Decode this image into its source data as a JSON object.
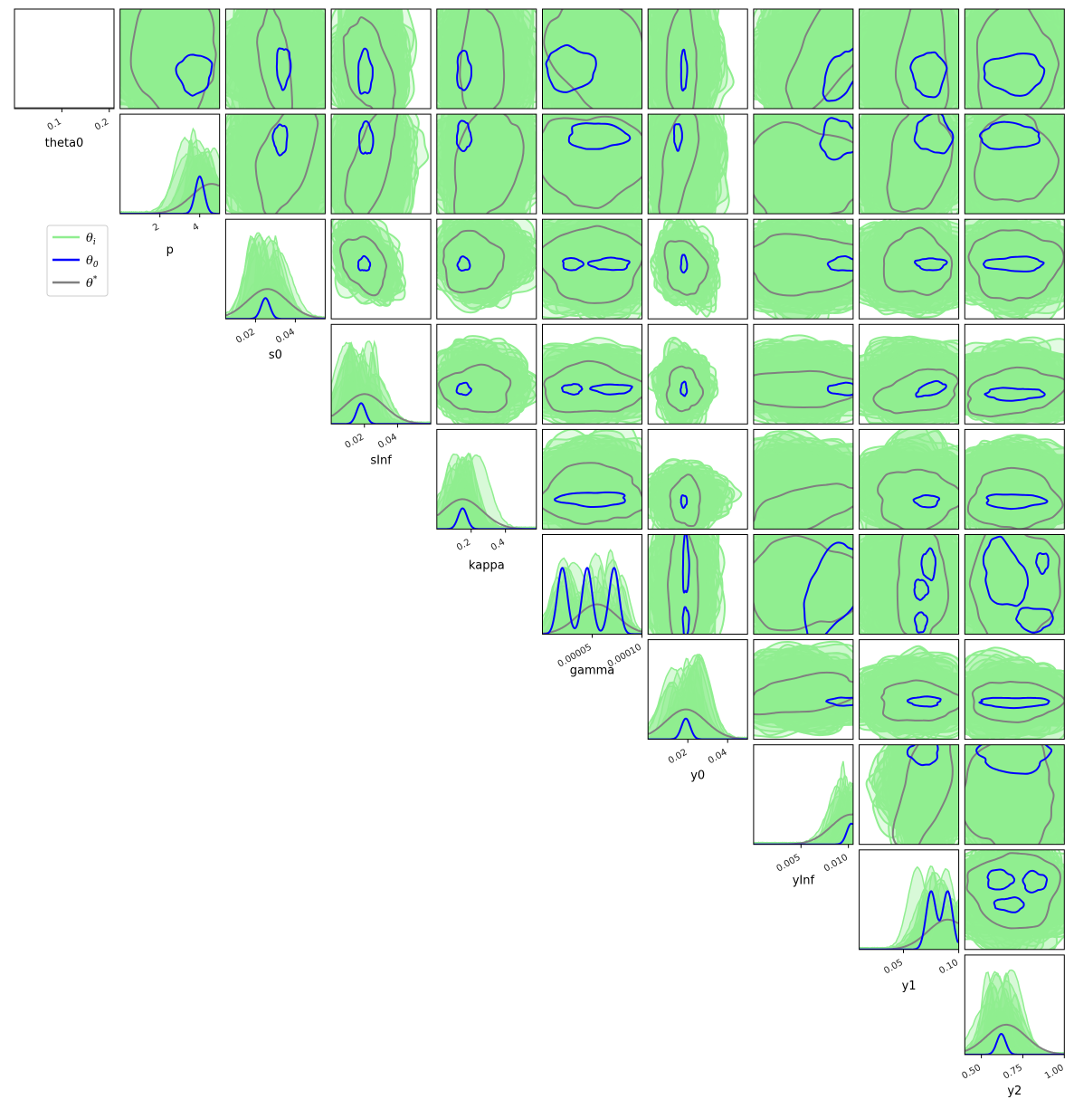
{
  "chart_data": {
    "type": "corner",
    "parameters": [
      "theta0",
      "p",
      "s0",
      "sInf",
      "kappa",
      "gamma",
      "y0",
      "yInf",
      "y1",
      "y2"
    ],
    "ticks": {
      "theta0": {
        "range": [
          0.0,
          0.21
        ],
        "ticks": [
          0.1,
          0.2
        ],
        "labels": [
          "0.1",
          "0.2"
        ]
      },
      "p": {
        "range": [
          0.0,
          5.0
        ],
        "ticks": [
          2,
          4
        ],
        "labels": [
          "2",
          "4"
        ]
      },
      "s0": {
        "range": [
          0.005,
          0.055
        ],
        "ticks": [
          0.02,
          0.04
        ],
        "labels": [
          "0.02",
          "0.04"
        ]
      },
      "sInf": {
        "range": [
          0.0,
          0.06
        ],
        "ticks": [
          0.02,
          0.04
        ],
        "labels": [
          "0.02",
          "0.04"
        ]
      },
      "kappa": {
        "range": [
          0.0,
          0.58
        ],
        "ticks": [
          0.2,
          0.4
        ],
        "labels": [
          "0.2",
          "0.4"
        ]
      },
      "gamma": {
        "range": [
          0.0,
          0.0001
        ],
        "ticks": [
          5e-05,
          0.0001
        ],
        "labels": [
          "0.00005",
          "0.00010"
        ]
      },
      "y0": {
        "range": [
          0.0,
          0.05
        ],
        "ticks": [
          0.02,
          0.04
        ],
        "labels": [
          "0.02",
          "0.04"
        ]
      },
      "yInf": {
        "range": [
          0.0,
          0.0105
        ],
        "ticks": [
          0.005,
          0.01
        ],
        "labels": [
          "0.005",
          "0.010"
        ]
      },
      "y1": {
        "range": [
          0.01,
          0.1
        ],
        "ticks": [
          0.05,
          0.1
        ],
        "labels": [
          "0.05",
          "0.10"
        ]
      },
      "y2": {
        "range": [
          0.4,
          1.0
        ],
        "ticks": [
          0.5,
          0.75,
          1.0
        ],
        "labels": [
          "0.50",
          "0.75",
          "1.00"
        ]
      }
    },
    "legend": {
      "placement": "left, below theta0 panel",
      "entries": [
        {
          "key": "theta_i",
          "label": "θ",
          "sub": "i",
          "sup": "",
          "color": "#90ee90"
        },
        {
          "key": "theta_0",
          "label": "θ",
          "sub": "0",
          "sup": "",
          "color": "#0000ff"
        },
        {
          "key": "theta_star",
          "label": "θ",
          "sub": "",
          "sup": "*",
          "color": "#808080"
        }
      ]
    },
    "colors": {
      "ensemble": "#90ee90",
      "reference": "#0000ff",
      "truth": "#808080"
    },
    "diagonal_peaks": {
      "p": {
        "blue": [
          4.0
        ],
        "grey": [
          4.6
        ]
      },
      "s0": {
        "blue": [
          0.025
        ],
        "grey": [
          0.026
        ]
      },
      "sInf": {
        "blue": [
          0.018
        ],
        "grey": [
          0.02
        ]
      },
      "kappa": {
        "blue": [
          0.15
        ],
        "grey": [
          0.15
        ]
      },
      "gamma": {
        "blue": [
          2e-05,
          4.5e-05,
          7.2e-05
        ],
        "grey": [
          5.5e-05
        ]
      },
      "y0": {
        "blue": [
          0.019
        ],
        "grey": [
          0.019
        ]
      },
      "yInf": {
        "blue": [
          0.0103
        ],
        "grey": [
          0.0103
        ]
      },
      "y1": {
        "blue": [
          0.075,
          0.09
        ],
        "grey": [
          0.09
        ]
      },
      "y2": {
        "blue": [
          0.62
        ],
        "grey": [
          0.65
        ]
      }
    },
    "grid": false
  }
}
